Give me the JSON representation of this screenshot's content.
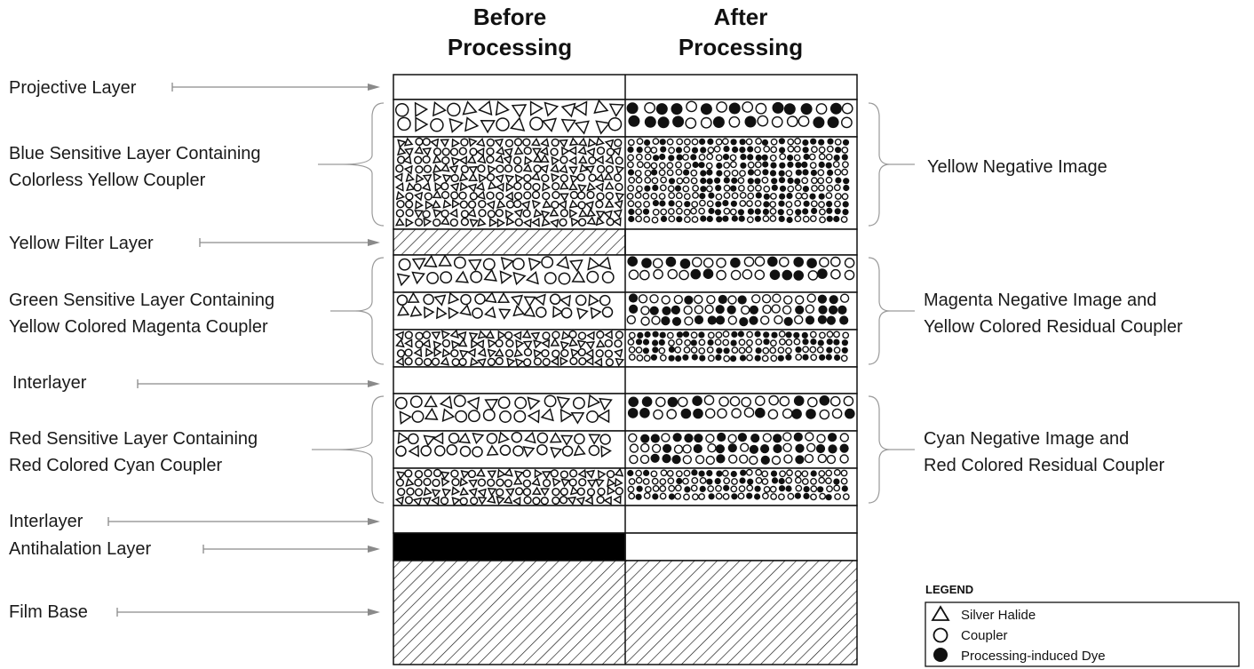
{
  "columns": {
    "before": [
      "Before",
      "Processing"
    ],
    "after": [
      "After",
      "Processing"
    ]
  },
  "left_labels": [
    {
      "id": "projective",
      "lines": [
        "Projective Layer"
      ]
    },
    {
      "id": "blue",
      "lines": [
        "Blue Sensitive Layer Containing",
        "Colorless Yellow Coupler"
      ]
    },
    {
      "id": "yellow-filter",
      "lines": [
        "Yellow Filter Layer"
      ]
    },
    {
      "id": "green",
      "lines": [
        "Green Sensitive Layer Containing",
        "Yellow Colored Magenta Coupler"
      ]
    },
    {
      "id": "interlayer-1",
      "lines": [
        "Interlayer"
      ]
    },
    {
      "id": "red",
      "lines": [
        "Red Sensitive Layer Containing",
        "Red Colored Cyan Coupler"
      ]
    },
    {
      "id": "interlayer-2",
      "lines": [
        "Interlayer"
      ]
    },
    {
      "id": "antihalation",
      "lines": [
        "Antihalation Layer"
      ]
    },
    {
      "id": "film-base",
      "lines": [
        "Film Base"
      ]
    }
  ],
  "right_labels": [
    {
      "id": "yellow-negative",
      "lines": [
        "Yellow Negative Image"
      ]
    },
    {
      "id": "magenta-negative",
      "lines": [
        "Magenta Negative Image and",
        "Yellow Colored Residual Coupler"
      ]
    },
    {
      "id": "cyan-negative",
      "lines": [
        "Cyan Negative Image and",
        "Red Colored Residual Coupler"
      ]
    }
  ],
  "legend": {
    "title": "LEGEND",
    "items": [
      {
        "symbol": "triangle",
        "label": "Silver Halide"
      },
      {
        "symbol": "circle",
        "label": "Coupler"
      },
      {
        "symbol": "dot",
        "label": "Processing-induced Dye"
      }
    ]
  },
  "colors": {
    "ink": "#111111",
    "bracket": "#9a9a9a",
    "arrow": "#8a8a8a"
  }
}
